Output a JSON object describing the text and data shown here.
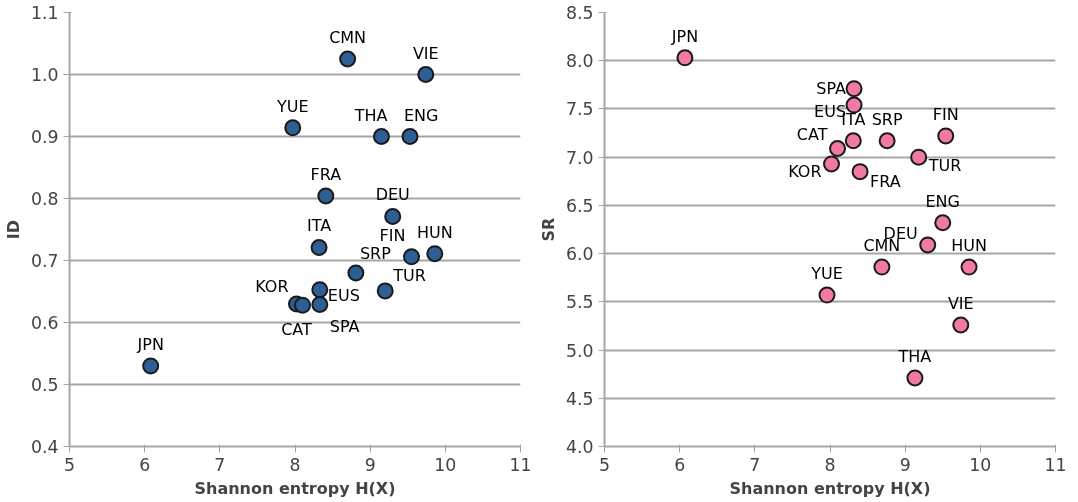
{
  "chart_data": [
    {
      "type": "scatter",
      "xlabel": "Shannon entropy H(X)",
      "ylabel": "ID",
      "xlim": [
        5,
        11
      ],
      "xticks": [
        5,
        6,
        7,
        8,
        9,
        10,
        11
      ],
      "ylim": [
        0.4,
        1.1
      ],
      "yticks": [
        0.4,
        0.5,
        0.6,
        0.7,
        0.8,
        0.9,
        {
          "value": 1,
          "label": "1.0"
        },
        1.1
      ],
      "grid": "y",
      "legend": false,
      "marker": "circle",
      "series": [
        {
          "name": "JPN",
          "color": "#2e5f94",
          "x": [
            6.08
          ],
          "values": [
            0.53
          ]
        },
        {
          "name": "CMN",
          "color": "#2e5f94",
          "x": [
            8.7
          ],
          "values": [
            1.025
          ]
        },
        {
          "name": "YUE",
          "color": "#2e5f94",
          "x": [
            7.97
          ],
          "values": [
            0.914
          ]
        },
        {
          "name": "VIE",
          "color": "#2e5f94",
          "x": [
            9.74
          ],
          "values": [
            1.0
          ]
        },
        {
          "name": "THA",
          "color": "#2e5f94",
          "x": [
            9.15
          ],
          "values": [
            0.9
          ]
        },
        {
          "name": "ENG",
          "color": "#2e5f94",
          "x": [
            9.53
          ],
          "values": [
            0.9
          ]
        },
        {
          "name": "FRA",
          "color": "#2e5f94",
          "x": [
            8.41
          ],
          "values": [
            0.804
          ]
        },
        {
          "name": "DEU",
          "color": "#2e5f94",
          "x": [
            9.3
          ],
          "values": [
            0.771
          ]
        },
        {
          "name": "ITA",
          "color": "#2e5f94",
          "x": [
            8.32
          ],
          "values": [
            0.721
          ]
        },
        {
          "name": "FIN",
          "color": "#2e5f94",
          "x": [
            9.55
          ],
          "values": [
            0.706
          ]
        },
        {
          "name": "HUN",
          "color": "#2e5f94",
          "x": [
            9.86
          ],
          "values": [
            0.711
          ]
        },
        {
          "name": "SRP",
          "color": "#2e5f94",
          "x": [
            8.81
          ],
          "values": [
            0.68
          ]
        },
        {
          "name": "TUR",
          "color": "#2e5f94",
          "x": [
            9.2
          ],
          "values": [
            0.651
          ]
        },
        {
          "name": "KOR",
          "color": "#2e5f94",
          "x": [
            8.02
          ],
          "values": [
            0.63
          ]
        },
        {
          "name": "CAT",
          "color": "#2e5f94",
          "x": [
            8.1
          ],
          "values": [
            0.628
          ]
        },
        {
          "name": "EUS",
          "color": "#2e5f94",
          "x": [
            8.33
          ],
          "values": [
            0.653
          ]
        },
        {
          "name": "SPA",
          "color": "#2e5f94",
          "x": [
            8.33
          ],
          "values": [
            0.629
          ]
        }
      ]
    },
    {
      "type": "scatter",
      "xlabel": "Shannon entropy H(X)",
      "ylabel": "SR",
      "xlim": [
        5,
        11
      ],
      "xticks": [
        5,
        6,
        7,
        8,
        9,
        10,
        11
      ],
      "ylim": [
        4,
        8.5
      ],
      "yticks": [
        {
          "value": 4,
          "label": "4.0"
        },
        4.5,
        {
          "value": 5,
          "label": "5.0"
        },
        5.5,
        {
          "value": 6,
          "label": "6.0"
        },
        6.5,
        {
          "value": 7,
          "label": "7.0"
        },
        7.5,
        {
          "value": 8,
          "label": "8.0"
        },
        8.5
      ],
      "grid": "y",
      "legend": false,
      "marker": "circle",
      "series": [
        {
          "name": "JPN",
          "color": "#f279a6",
          "x": [
            6.07
          ],
          "values": [
            8.03
          ]
        },
        {
          "name": "CMN",
          "color": "#f279a6",
          "x": [
            8.69
          ],
          "values": [
            5.86
          ]
        },
        {
          "name": "YUE",
          "color": "#f279a6",
          "x": [
            7.96
          ],
          "values": [
            5.57
          ]
        },
        {
          "name": "VIE",
          "color": "#f279a6",
          "x": [
            9.74
          ],
          "values": [
            5.26
          ]
        },
        {
          "name": "THA",
          "color": "#f279a6",
          "x": [
            9.13
          ],
          "values": [
            4.71
          ]
        },
        {
          "name": "ENG",
          "color": "#f279a6",
          "x": [
            9.5
          ],
          "values": [
            6.32
          ]
        },
        {
          "name": "FRA",
          "color": "#f279a6",
          "x": [
            8.4
          ],
          "values": [
            6.85
          ]
        },
        {
          "name": "DEU",
          "color": "#f279a6",
          "x": [
            9.3
          ],
          "values": [
            6.09
          ]
        },
        {
          "name": "ITA",
          "color": "#f279a6",
          "x": [
            8.31
          ],
          "values": [
            7.17
          ]
        },
        {
          "name": "FIN",
          "color": "#f279a6",
          "x": [
            9.54
          ],
          "values": [
            7.22
          ]
        },
        {
          "name": "HUN",
          "color": "#f279a6",
          "x": [
            9.85
          ],
          "values": [
            5.86
          ]
        },
        {
          "name": "SRP",
          "color": "#f279a6",
          "x": [
            8.76
          ],
          "values": [
            7.17
          ]
        },
        {
          "name": "TUR",
          "color": "#f279a6",
          "x": [
            9.18
          ],
          "values": [
            7.0
          ]
        },
        {
          "name": "KOR",
          "color": "#f279a6",
          "x": [
            8.02
          ],
          "values": [
            6.93
          ]
        },
        {
          "name": "CAT",
          "color": "#f279a6",
          "x": [
            8.1
          ],
          "values": [
            7.09
          ]
        },
        {
          "name": "EUS",
          "color": "#f279a6",
          "x": [
            8.32
          ],
          "values": [
            7.54
          ]
        },
        {
          "name": "SPA",
          "color": "#f279a6",
          "x": [
            8.32
          ],
          "values": [
            7.71
          ]
        }
      ]
    }
  ]
}
